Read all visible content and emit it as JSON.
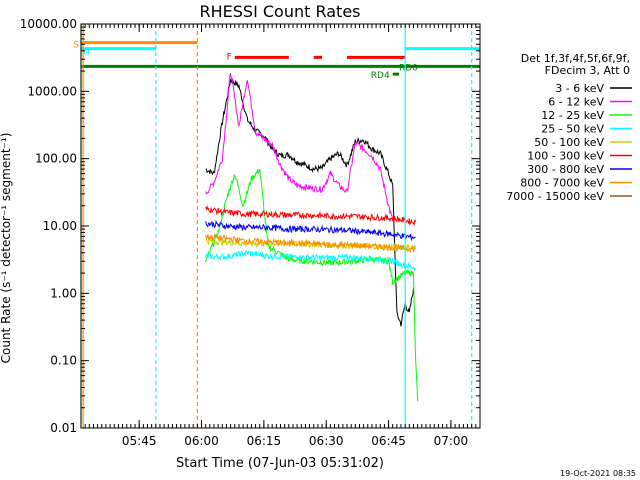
{
  "chart_data": {
    "type": "line",
    "title": "RHESSI Count Rates",
    "xlabel": "Start Time (07-Jun-03 05:31:02)",
    "ylabel": "Count Rate (s⁻¹ detector⁻¹ segment⁻¹)",
    "x_unit": "minutes since 05:31:02",
    "xlim": [
      0,
      96
    ],
    "ylim": [
      0.01,
      10000
    ],
    "yscale": "log",
    "x_ticks": [
      {
        "value": 14,
        "label": "05:45"
      },
      {
        "value": 29,
        "label": "06:00"
      },
      {
        "value": 44,
        "label": "06:15"
      },
      {
        "value": 59,
        "label": "06:30"
      },
      {
        "value": 74,
        "label": "06:45"
      },
      {
        "value": 89,
        "label": "07:00"
      }
    ],
    "y_ticks": [
      {
        "value": 0.01,
        "label": "0.01"
      },
      {
        "value": 0.1,
        "label": "0.10"
      },
      {
        "value": 1,
        "label": "1.00"
      },
      {
        "value": 10,
        "label": "10.00"
      },
      {
        "value": 100,
        "label": "100.00"
      },
      {
        "value": 1000,
        "label": "1000.00"
      },
      {
        "value": 10000,
        "label": "10000.00"
      }
    ],
    "legend": {
      "header": [
        "Det 1f,3f,4f,5f,6f,9f,",
        "FDecim 3, Att 0"
      ],
      "placement": "right"
    },
    "series": [
      {
        "name": "3 - 6 keV",
        "color": "#000000",
        "x": [
          30,
          32,
          34,
          36,
          38,
          40,
          42,
          44,
          46,
          48,
          50,
          52,
          54,
          56,
          58,
          60,
          62,
          64,
          66,
          68,
          70,
          72,
          74,
          75,
          76,
          77,
          78,
          79,
          80
        ],
        "y": [
          70,
          60,
          350,
          1500,
          1200,
          380,
          260,
          220,
          140,
          110,
          115,
          90,
          80,
          70,
          72,
          100,
          120,
          80,
          180,
          190,
          140,
          120,
          60,
          40,
          0.5,
          0.35,
          0.7,
          0.5,
          1.2
        ]
      },
      {
        "name": "6 - 12 keV",
        "color": "#ff00ff",
        "x": [
          30,
          32,
          34,
          36,
          38,
          40,
          42,
          44,
          46,
          48,
          50,
          52,
          54,
          56,
          58,
          60,
          62,
          64,
          66,
          68,
          70,
          72,
          74,
          75
        ],
        "y": [
          30,
          45,
          100,
          2000,
          300,
          1600,
          250,
          200,
          160,
          80,
          50,
          40,
          38,
          36,
          35,
          60,
          40,
          32,
          170,
          140,
          110,
          70,
          20,
          12
        ]
      },
      {
        "name": "12 - 25 keV",
        "color": "#00ff00",
        "x": [
          30,
          33,
          35,
          37,
          39,
          41,
          43,
          45,
          50,
          55,
          60,
          65,
          70,
          74,
          75,
          78,
          80,
          80.5,
          81
        ],
        "y": [
          3,
          8,
          25,
          60,
          20,
          50,
          70,
          5,
          3.2,
          3,
          2.8,
          3,
          3.2,
          3,
          1.5,
          2,
          2,
          0.1,
          0.025
        ]
      },
      {
        "name": "25 - 50 keV",
        "color": "#00ffff",
        "x": [
          30,
          35,
          40,
          45,
          50,
          55,
          60,
          65,
          70,
          75,
          78,
          80.5
        ],
        "y": [
          3.5,
          3.5,
          4,
          3.6,
          3.5,
          3.4,
          3.4,
          3.4,
          3.3,
          3,
          2.6,
          2.4
        ]
      },
      {
        "name": "50 - 100 keV",
        "color": "#cccc00",
        "x": [
          30,
          40,
          50,
          60,
          70,
          80.5
        ],
        "y": [
          6,
          5.5,
          5.5,
          5.2,
          5,
          4.8
        ]
      },
      {
        "name": "100 - 300 keV",
        "color": "#ff0000",
        "x": [
          30,
          35,
          40,
          45,
          50,
          55,
          60,
          65,
          70,
          75,
          78,
          80.5
        ],
        "y": [
          18,
          16,
          15,
          15,
          14.5,
          14.5,
          14,
          14,
          13.5,
          13,
          12,
          11.5
        ]
      },
      {
        "name": "300 - 800 keV",
        "color": "#0000ff",
        "x": [
          30,
          35,
          40,
          45,
          50,
          55,
          60,
          65,
          70,
          75,
          78,
          80.5
        ],
        "y": [
          11,
          10,
          9.5,
          9.5,
          9,
          9,
          8.8,
          8.5,
          8,
          7.5,
          7,
          6.8
        ]
      },
      {
        "name": "800 - 7000 keV",
        "color": "#ff8c00",
        "x": [
          30,
          35,
          40,
          45,
          50,
          55,
          60,
          65,
          70,
          75,
          78,
          80.5
        ],
        "y": [
          7,
          6.5,
          6,
          5.8,
          5.6,
          5.5,
          5.3,
          5.2,
          5,
          4.8,
          4.6,
          4.5
        ]
      },
      {
        "name": "7000 - 15000 keV",
        "color": "#8b5a2b",
        "x": [],
        "y": []
      }
    ],
    "annotations": [
      {
        "label": "S",
        "color": "#ff8c00",
        "x": [
          0,
          28
        ],
        "y": 5300
      },
      {
        "label": "N",
        "color": "#00ffff",
        "x": [
          0,
          18
        ],
        "y": 4300
      },
      {
        "label": "N",
        "color": "#00ffff",
        "x": [
          78,
          96
        ],
        "y": 4300
      },
      {
        "label": "F",
        "color": "#ff0000",
        "segments": [
          [
            37,
            50
          ],
          [
            56,
            58
          ],
          [
            64,
            78
          ]
        ],
        "y": 3200
      },
      {
        "label": "RD0",
        "color": "#008000",
        "x": [
          0,
          96
        ],
        "y": 2350
      },
      {
        "label": "RD4",
        "color": "#008000",
        "x": [
          75,
          76.5
        ],
        "y": 1800
      }
    ],
    "vlines": [
      {
        "x": 0,
        "color": "#00ffff",
        "style": "solid"
      },
      {
        "x": 0.5,
        "color": "#ff8c00",
        "style": "solid"
      },
      {
        "x": 18,
        "color": "#00ffff",
        "style": "dashed"
      },
      {
        "x": 28,
        "color": "#ff8c00",
        "style": "dashed"
      },
      {
        "x": 78,
        "color": "#00ffff",
        "style": "solid"
      },
      {
        "x": 94,
        "color": "#00ffff",
        "style": "dashed"
      }
    ],
    "grid": false
  },
  "footer": {
    "timestamp": "19-Oct-2021 08:35"
  }
}
